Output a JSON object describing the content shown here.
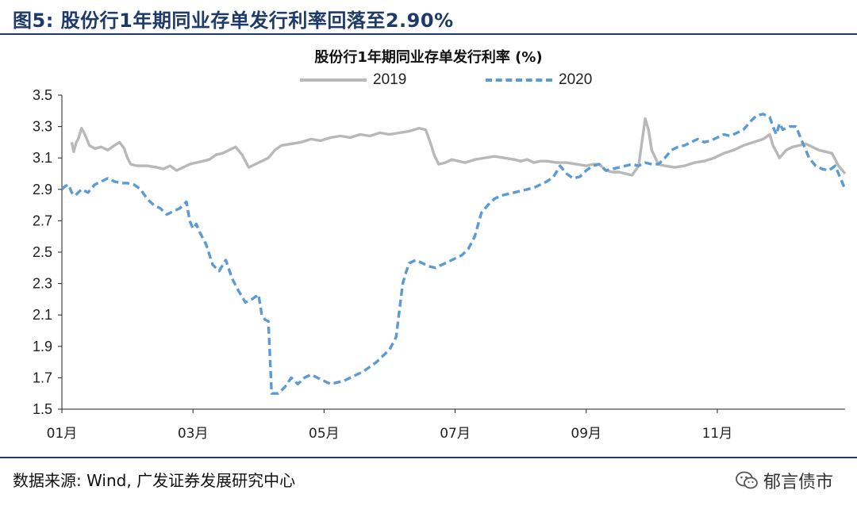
{
  "figure_title": "图5:  股份行1年期同业存单发行利率回落至2.90%",
  "source_note": "数据来源: Wind, 广发证券发展研究中心",
  "watermark": "郁言债市",
  "watermark_icon": "wechat-icon",
  "colors": {
    "series_2019": "#b8b8b8",
    "series_2020": "#5b9bd5",
    "rule": "#1d3a6b"
  },
  "chart_data": {
    "type": "line",
    "title": "股份行1年期同业存单发行利率 (%)",
    "xlabel": "",
    "ylabel": "",
    "ylim": [
      1.5,
      3.5
    ],
    "yticks": [
      "1.5",
      "1.7",
      "1.9",
      "2.1",
      "2.3",
      "2.5",
      "2.7",
      "2.9",
      "3.1",
      "3.3",
      "3.5"
    ],
    "xlim": [
      1,
      12.95
    ],
    "xticks": [
      {
        "x": 1,
        "label": "01月"
      },
      {
        "x": 3,
        "label": "03月"
      },
      {
        "x": 5,
        "label": "05月"
      },
      {
        "x": 7,
        "label": "07月"
      },
      {
        "x": 9,
        "label": "09月"
      },
      {
        "x": 11,
        "label": "11月"
      }
    ],
    "grid": false,
    "legend_position": "top-center",
    "series": [
      {
        "name": "2019",
        "style": "solid",
        "x": [
          1.15,
          1.18,
          1.22,
          1.25,
          1.3,
          1.35,
          1.42,
          1.5,
          1.6,
          1.7,
          1.8,
          1.88,
          1.95,
          2.0,
          2.05,
          2.15,
          2.3,
          2.45,
          2.55,
          2.65,
          2.75,
          2.85,
          2.95,
          3.05,
          3.15,
          3.25,
          3.35,
          3.45,
          3.55,
          3.65,
          3.75,
          3.85,
          3.95,
          4.05,
          4.15,
          4.25,
          4.35,
          4.5,
          4.65,
          4.8,
          4.95,
          5.1,
          5.25,
          5.4,
          5.55,
          5.7,
          5.85,
          6.0,
          6.15,
          6.3,
          6.45,
          6.55,
          6.62,
          6.68,
          6.75,
          6.85,
          6.95,
          7.05,
          7.15,
          7.3,
          7.45,
          7.6,
          7.75,
          7.9,
          8.0,
          8.1,
          8.2,
          8.3,
          8.4,
          8.55,
          8.7,
          8.85,
          9.0,
          9.1,
          9.2,
          9.3,
          9.4,
          9.5,
          9.6,
          9.7,
          9.8,
          9.9,
          9.95,
          10.0,
          10.1,
          10.2,
          10.35,
          10.5,
          10.65,
          10.8,
          10.95,
          11.1,
          11.25,
          11.4,
          11.55,
          11.7,
          11.8,
          11.85,
          11.9,
          11.95,
          12.05,
          12.15,
          12.25,
          12.35,
          12.45,
          12.55,
          12.65,
          12.75,
          12.85,
          12.95
        ],
        "values": [
          3.2,
          3.14,
          3.2,
          3.22,
          3.29,
          3.25,
          3.18,
          3.16,
          3.17,
          3.15,
          3.18,
          3.2,
          3.16,
          3.1,
          3.06,
          3.05,
          3.05,
          3.04,
          3.03,
          3.05,
          3.02,
          3.04,
          3.06,
          3.07,
          3.08,
          3.09,
          3.12,
          3.13,
          3.15,
          3.17,
          3.12,
          3.04,
          3.06,
          3.08,
          3.1,
          3.15,
          3.18,
          3.19,
          3.2,
          3.22,
          3.21,
          3.23,
          3.24,
          3.23,
          3.25,
          3.24,
          3.26,
          3.25,
          3.26,
          3.27,
          3.29,
          3.28,
          3.2,
          3.12,
          3.06,
          3.07,
          3.09,
          3.08,
          3.07,
          3.09,
          3.1,
          3.11,
          3.1,
          3.09,
          3.08,
          3.09,
          3.07,
          3.08,
          3.08,
          3.07,
          3.07,
          3.06,
          3.05,
          3.06,
          3.06,
          3.02,
          3.01,
          3.01,
          3.0,
          2.99,
          3.05,
          3.35,
          3.28,
          3.15,
          3.06,
          3.05,
          3.04,
          3.05,
          3.07,
          3.08,
          3.1,
          3.13,
          3.15,
          3.18,
          3.2,
          3.22,
          3.25,
          3.18,
          3.14,
          3.1,
          3.15,
          3.17,
          3.18,
          3.19,
          3.17,
          3.15,
          3.14,
          3.13,
          3.05,
          3.0
        ]
      },
      {
        "name": "2020",
        "style": "dashed",
        "x": [
          1.0,
          1.05,
          1.1,
          1.15,
          1.2,
          1.3,
          1.4,
          1.5,
          1.6,
          1.7,
          1.8,
          1.9,
          2.0,
          2.1,
          2.2,
          2.3,
          2.4,
          2.5,
          2.6,
          2.7,
          2.8,
          2.9,
          2.95,
          3.0,
          3.05,
          3.1,
          3.2,
          3.3,
          3.4,
          3.5,
          3.6,
          3.7,
          3.8,
          3.9,
          4.0,
          4.05,
          4.1,
          4.15,
          4.2,
          4.3,
          4.4,
          4.5,
          4.6,
          4.7,
          4.8,
          4.9,
          5.0,
          5.1,
          5.2,
          5.3,
          5.4,
          5.5,
          5.6,
          5.7,
          5.8,
          5.9,
          6.0,
          6.1,
          6.2,
          6.25,
          6.3,
          6.4,
          6.5,
          6.6,
          6.7,
          6.8,
          6.9,
          7.0,
          7.1,
          7.2,
          7.3,
          7.4,
          7.5,
          7.6,
          7.7,
          7.8,
          7.9,
          8.0,
          8.1,
          8.2,
          8.3,
          8.4,
          8.5,
          8.6,
          8.7,
          8.8,
          8.9,
          9.0,
          9.1,
          9.2,
          9.3,
          9.4,
          9.5,
          9.6,
          9.7,
          9.8,
          9.9,
          10.0,
          10.1,
          10.2,
          10.3,
          10.4,
          10.5,
          10.6,
          10.7,
          10.8,
          10.9,
          11.0,
          11.1,
          11.2,
          11.3,
          11.4,
          11.5,
          11.6,
          11.7,
          11.8,
          11.85,
          11.9,
          11.95,
          12.0,
          12.1,
          12.2,
          12.3,
          12.4,
          12.5,
          12.6,
          12.7,
          12.8,
          12.85,
          12.9,
          12.95
        ],
        "values": [
          2.9,
          2.92,
          2.93,
          2.88,
          2.86,
          2.9,
          2.88,
          2.93,
          2.95,
          2.97,
          2.95,
          2.94,
          2.94,
          2.93,
          2.9,
          2.84,
          2.8,
          2.78,
          2.74,
          2.76,
          2.78,
          2.82,
          2.7,
          2.65,
          2.68,
          2.63,
          2.55,
          2.42,
          2.38,
          2.45,
          2.33,
          2.25,
          2.18,
          2.2,
          2.23,
          2.1,
          2.07,
          2.06,
          1.6,
          1.6,
          1.64,
          1.7,
          1.66,
          1.7,
          1.72,
          1.7,
          1.68,
          1.66,
          1.67,
          1.68,
          1.7,
          1.72,
          1.74,
          1.77,
          1.8,
          1.84,
          1.88,
          1.96,
          2.3,
          2.37,
          2.43,
          2.45,
          2.43,
          2.41,
          2.4,
          2.42,
          2.44,
          2.46,
          2.48,
          2.52,
          2.6,
          2.75,
          2.8,
          2.84,
          2.86,
          2.87,
          2.88,
          2.89,
          2.9,
          2.91,
          2.93,
          2.95,
          2.98,
          3.05,
          3.0,
          2.97,
          2.98,
          3.02,
          3.05,
          3.06,
          3.02,
          3.03,
          3.04,
          3.05,
          3.06,
          3.05,
          3.07,
          3.06,
          3.06,
          3.1,
          3.15,
          3.17,
          3.18,
          3.2,
          3.22,
          3.2,
          3.21,
          3.23,
          3.25,
          3.24,
          3.26,
          3.28,
          3.33,
          3.37,
          3.38,
          3.36,
          3.3,
          3.25,
          3.32,
          3.28,
          3.3,
          3.3,
          3.2,
          3.1,
          3.05,
          3.03,
          3.02,
          3.05,
          3.0,
          2.95,
          2.9
        ]
      }
    ]
  }
}
